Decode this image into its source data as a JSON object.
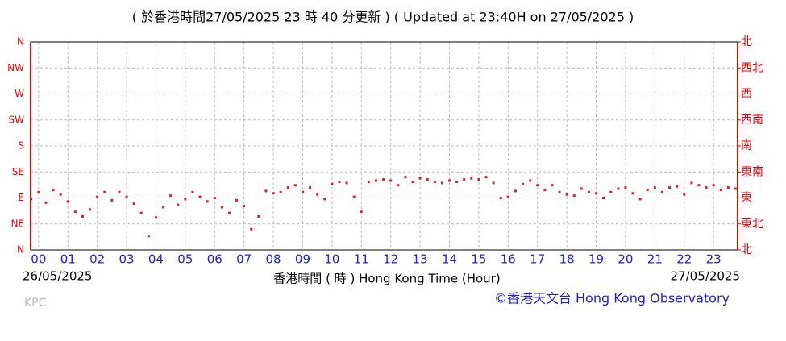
{
  "chart_data": {
    "type": "scatter",
    "title": "( 於香港時間27/05/2025 23 時 40 分更新 ) ( Updated at 23:40H on 27/05/2025 )",
    "x_label": "香港時間 ( 時 ) Hong Kong Time (Hour)",
    "start_date": "26/05/2025",
    "end_date": "27/05/2025",
    "station": "KPC",
    "credit": "©香港天文台 Hong Kong Observatory",
    "color": "#e02020",
    "grid": true,
    "xlim": [
      -0.27,
      23.82
    ],
    "ylim": [
      0,
      360
    ],
    "y2lim": [
      0,
      360
    ],
    "xticks": [
      {
        "value": 0,
        "label": "00"
      },
      {
        "value": 1,
        "label": "01"
      },
      {
        "value": 2,
        "label": "02"
      },
      {
        "value": 3,
        "label": "03"
      },
      {
        "value": 4,
        "label": "04"
      },
      {
        "value": 5,
        "label": "05"
      },
      {
        "value": 6,
        "label": "06"
      },
      {
        "value": 7,
        "label": "07"
      },
      {
        "value": 8,
        "label": "08"
      },
      {
        "value": 9,
        "label": "09"
      },
      10,
      11,
      12,
      13,
      14,
      15,
      16,
      17,
      18,
      19,
      20,
      21,
      22,
      23
    ],
    "yticks": [
      {
        "value": 0,
        "label": "N"
      },
      {
        "value": 45,
        "label": "NE"
      },
      {
        "value": 90,
        "label": "E"
      },
      {
        "value": 135,
        "label": "SE"
      },
      {
        "value": 180,
        "label": "S"
      },
      {
        "value": 225,
        "label": "SW"
      },
      {
        "value": 270,
        "label": "W"
      },
      {
        "value": 315,
        "label": "NW"
      },
      {
        "value": 360,
        "label": "N"
      }
    ],
    "y2ticks": [
      {
        "value": 0,
        "label": "北"
      },
      {
        "value": 45,
        "label": "東北"
      },
      {
        "value": 90,
        "label": "東"
      },
      {
        "value": 135,
        "label": "東南"
      },
      {
        "value": 180,
        "label": "南"
      },
      {
        "value": 225,
        "label": "西南"
      },
      {
        "value": 270,
        "label": "西"
      },
      {
        "value": 315,
        "label": "西北"
      },
      {
        "value": 360,
        "label": "北"
      }
    ],
    "x": [
      -0.25,
      0,
      0.25,
      0.5,
      0.75,
      1,
      1.25,
      1.5,
      1.75,
      2,
      2.25,
      2.5,
      2.75,
      3,
      3.25,
      3.5,
      3.75,
      4,
      4.25,
      4.5,
      4.75,
      5,
      5.25,
      5.5,
      5.75,
      6,
      6.25,
      6.5,
      6.75,
      7,
      7.25,
      7.5,
      7.75,
      8,
      8.25,
      8.5,
      8.75,
      9,
      9.25,
      9.5,
      9.75,
      10,
      10.25,
      10.5,
      10.75,
      11,
      11.25,
      11.5,
      11.75,
      12,
      12.25,
      12.5,
      12.75,
      13,
      13.25,
      13.5,
      13.75,
      14,
      14.25,
      14.5,
      14.75,
      15,
      15.25,
      15.5,
      15.75,
      16,
      16.25,
      16.5,
      16.75,
      17,
      17.25,
      17.5,
      17.75,
      18,
      18.25,
      18.5,
      18.75,
      19,
      19.25,
      19.5,
      19.75,
      20,
      20.25,
      20.5,
      20.75,
      21,
      21.25,
      21.5,
      21.75,
      22,
      22.25,
      22.5,
      22.75,
      23,
      23.25,
      23.5,
      23.75
    ],
    "values": [
      88,
      100,
      82,
      104,
      96,
      84,
      66,
      58,
      70,
      92,
      100,
      86,
      100,
      92,
      80,
      64,
      24,
      56,
      74,
      94,
      78,
      88,
      100,
      92,
      84,
      90,
      74,
      64,
      86,
      76,
      36,
      58,
      102,
      98,
      100,
      108,
      112,
      100,
      108,
      96,
      88,
      114,
      118,
      116,
      92,
      66,
      118,
      120,
      122,
      120,
      112,
      126,
      118,
      124,
      122,
      118,
      116,
      120,
      118,
      122,
      124,
      122,
      126,
      116,
      90,
      92,
      102,
      114,
      120,
      112,
      104,
      112,
      100,
      96,
      94,
      106,
      100,
      98,
      90,
      100,
      106,
      108,
      98,
      88,
      104,
      108,
      100,
      108,
      110,
      96,
      116,
      112,
      108,
      112,
      104,
      108,
      106
    ]
  }
}
